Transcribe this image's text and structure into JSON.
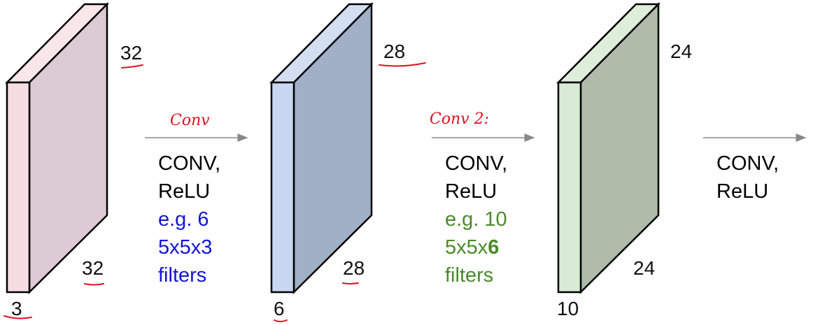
{
  "colors": {
    "block1_front": "#f6dde3",
    "block1_side": "#dccbd3",
    "block1_top": "#f8e6ea",
    "block2_front": "#c9d7f2",
    "block2_side": "#a2b0c6",
    "block2_top": "#d3def3",
    "block3_front": "#d7ebd5",
    "block3_side": "#b0bcaa",
    "block3_top": "#dfeedb",
    "blue_text": "#1414d8",
    "green_text": "#4a8a2a",
    "annotation": "#e01020",
    "arrow": "#888888"
  },
  "volumes": [
    {
      "width": "32",
      "height": "32",
      "depth": "3"
    },
    {
      "width": "28",
      "height": "28",
      "depth": "6"
    },
    {
      "width": "24",
      "height": "24",
      "depth": "10"
    }
  ],
  "stages": [
    {
      "op": "CONV,",
      "act": "ReLU",
      "note1": "e.g. 6",
      "note2": "5x5x3",
      "note2_bold": "",
      "note3": "filters",
      "annotation": "Conv"
    },
    {
      "op": "CONV,",
      "act": "ReLU",
      "note1": "e.g. 10",
      "note2": "5x5x",
      "note2_bold": "6",
      "note3": "filters",
      "annotation": "Conv 2:"
    },
    {
      "op": "CONV,",
      "act": "ReLU"
    }
  ]
}
